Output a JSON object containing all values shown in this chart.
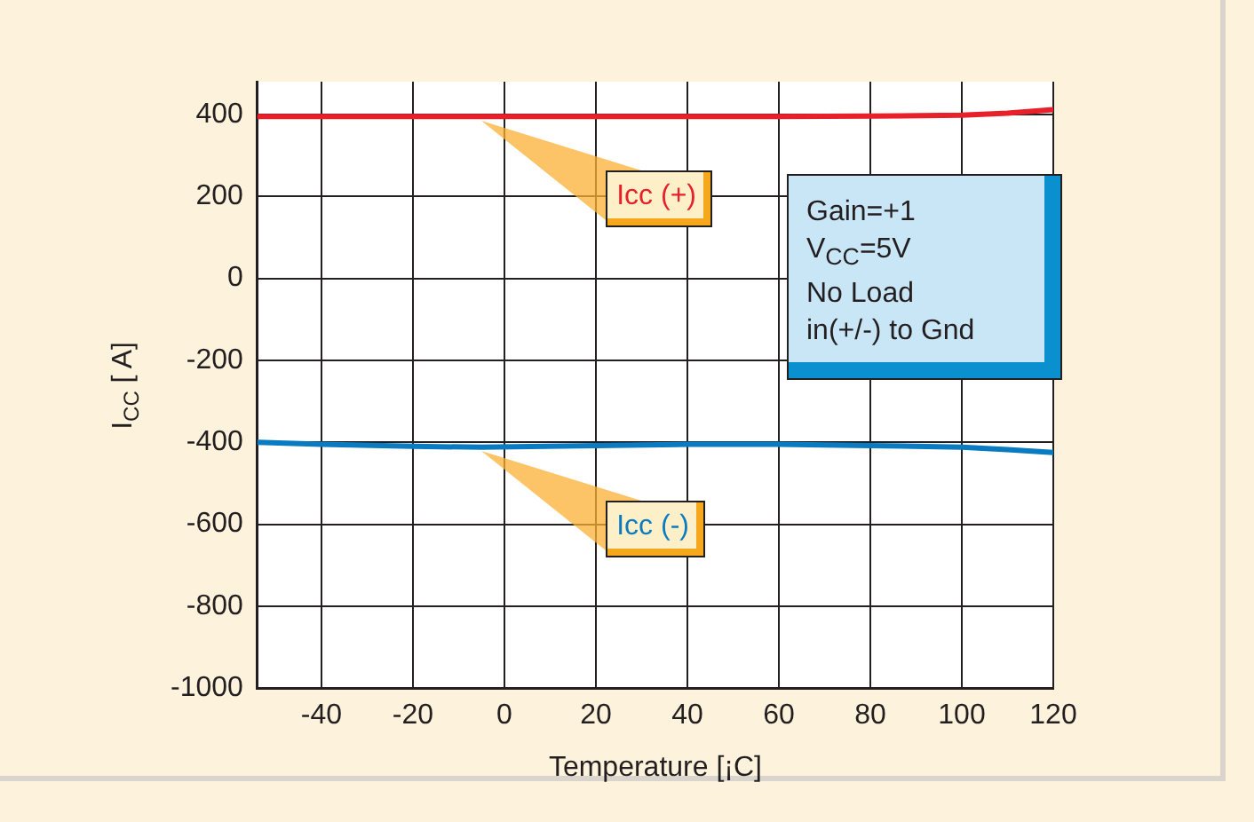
{
  "chart_data": {
    "type": "line",
    "xlabel": "Temperature [¡C]",
    "ylabel": "I$_{CC}$ [ A]",
    "x": [
      -54,
      -40,
      -20,
      -5,
      20,
      40,
      60,
      80,
      100,
      110,
      120
    ],
    "series": [
      {
        "name": "Icc (+)",
        "color": "#e8202a",
        "values": [
          395,
          395,
          395,
          395,
          395,
          395,
          395,
          396,
          398,
          403,
          412
        ]
      },
      {
        "name": "Icc (-)",
        "color": "#0a7bc0",
        "values": [
          -400,
          -405,
          -410,
          -412,
          -408,
          -405,
          -405,
          -408,
          -412,
          -418,
          -425
        ]
      }
    ],
    "xlim": [
      -54,
      120
    ],
    "xticks": [
      -40,
      -20,
      0,
      20,
      40,
      60,
      80,
      100,
      120
    ],
    "ylim": [
      -1000,
      480
    ],
    "yticks": [
      -1000,
      -800,
      -600,
      -400,
      -200,
      0,
      200,
      400
    ],
    "grid": true,
    "legend": false,
    "marker": "none",
    "line_style": "solid",
    "annotations": [
      "Gain=+1\nV$_{CC}$=5V\nNo Load\nin(+/-) to Gnd"
    ]
  }
}
